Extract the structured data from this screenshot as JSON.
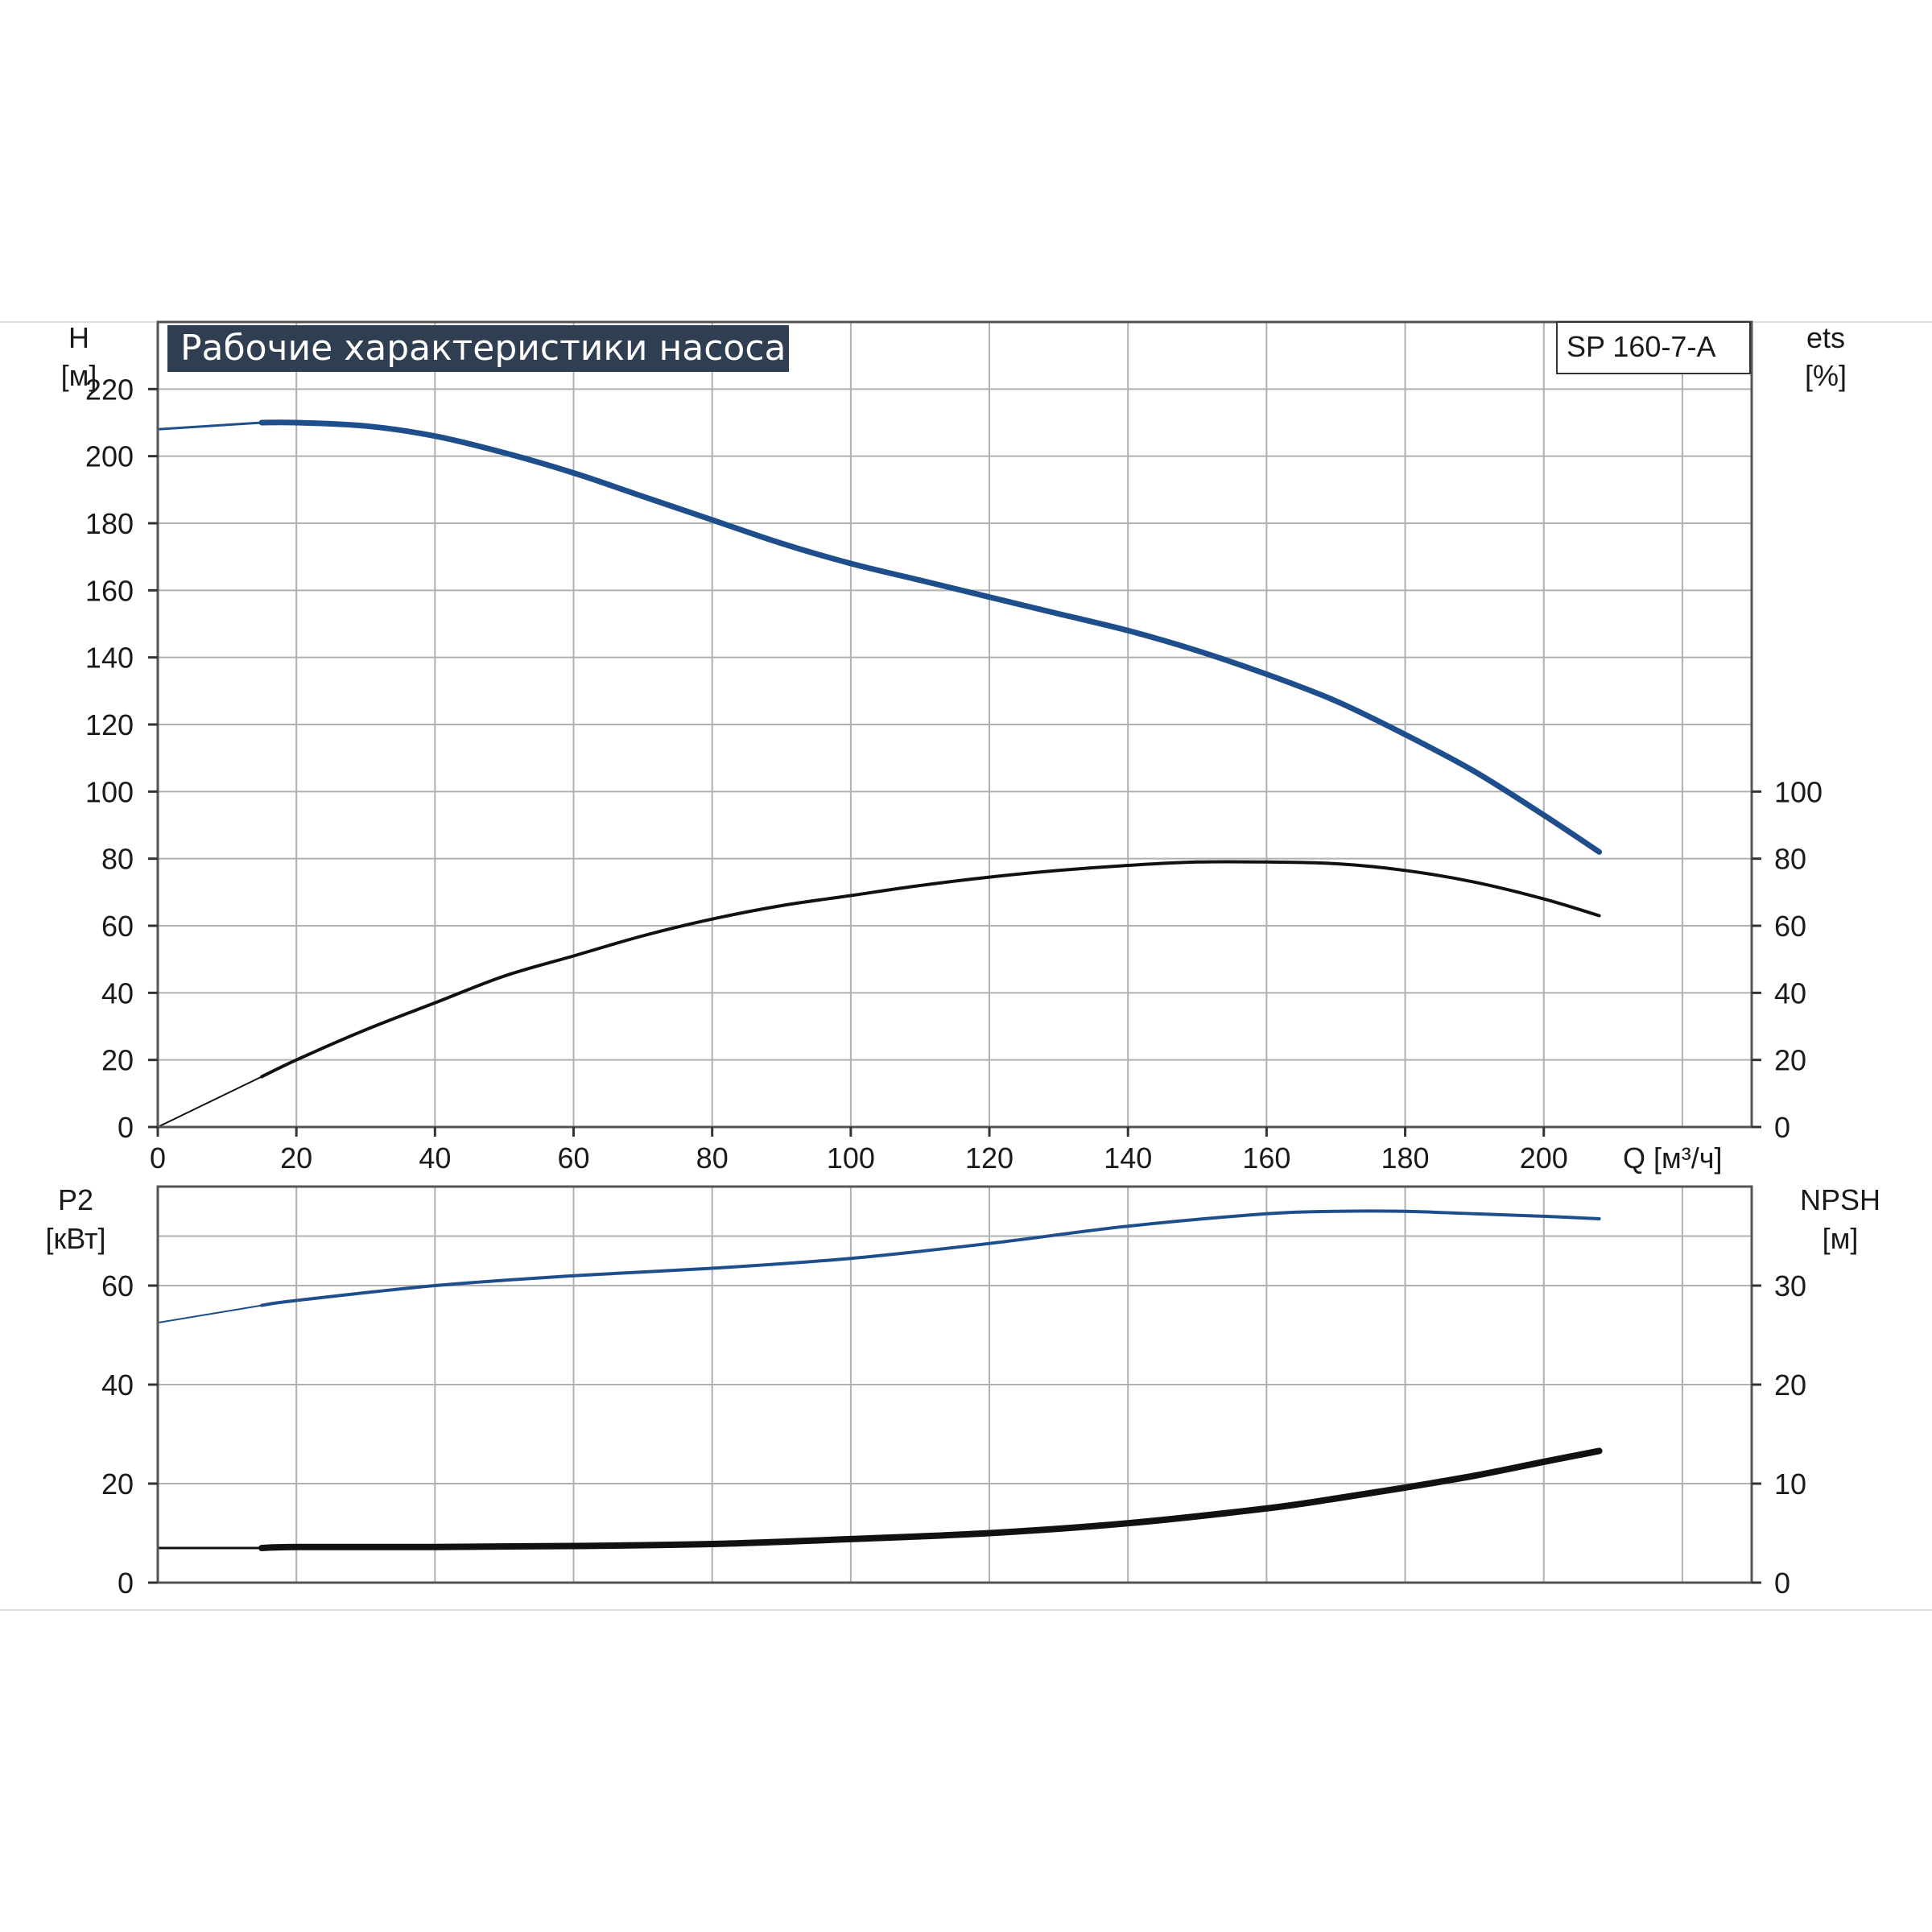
{
  "title": "Рабочие характеристики насоса",
  "model": "SP 160-7-A",
  "colors": {
    "head_curve": "#1f4e8c",
    "power_curve": "#1f4e8c",
    "efficiency_curve": "#111111",
    "npsh_curve": "#111111",
    "grid": "#b0b0b0",
    "title_bg": "#2f3e50"
  },
  "top_chart": {
    "left_axis": {
      "symbol": "H",
      "unit": "[м]"
    },
    "right_axis": {
      "symbol": "ets",
      "unit": "[%]"
    }
  },
  "x_axis": {
    "label": "Q [м³/ч]"
  },
  "bottom_chart": {
    "left_axis": {
      "symbol": "P2",
      "unit": "[кВт]"
    },
    "right_axis": {
      "symbol": "NPSH",
      "unit": "[м]"
    }
  },
  "chart_data": [
    {
      "type": "line",
      "xlabel": "Q [м³/ч]",
      "ylabel": "H [м]",
      "y2label": "ets [%]",
      "xlim": [
        0,
        230
      ],
      "ylim": [
        0,
        240
      ],
      "y2lim": [
        0,
        240
      ],
      "xticks": [
        0,
        20,
        40,
        60,
        80,
        100,
        120,
        140,
        160,
        180,
        200
      ],
      "yticks": [
        0,
        20,
        40,
        60,
        80,
        100,
        120,
        140,
        160,
        180,
        200,
        220
      ],
      "y2ticks": [
        0,
        20,
        40,
        60,
        80,
        100
      ],
      "grid": true,
      "series": [
        {
          "axis": "left",
          "x": [
            0,
            15,
            20,
            30,
            40,
            50,
            60,
            70,
            80,
            90,
            100,
            110,
            120,
            130,
            140,
            150,
            160,
            170,
            180,
            190,
            200,
            208
          ],
          "values": [
            208,
            210,
            210,
            209,
            206,
            201,
            195,
            188,
            181,
            174,
            168,
            163,
            158,
            153,
            148,
            142,
            135,
            127,
            117,
            106,
            93,
            82
          ]
        },
        {
          "axis": "right",
          "x": [
            0,
            15,
            20,
            30,
            40,
            50,
            60,
            70,
            80,
            90,
            100,
            110,
            120,
            130,
            140,
            150,
            160,
            170,
            180,
            190,
            200,
            208
          ],
          "values": [
            0,
            15,
            20,
            29,
            37,
            45,
            51,
            57,
            62,
            66,
            69,
            72,
            74.5,
            76.5,
            78,
            79,
            79,
            78.5,
            76.5,
            73,
            68,
            63
          ]
        }
      ]
    },
    {
      "type": "line",
      "xlabel": "Q [м³/ч]",
      "ylabel": "P2 [кВт]",
      "y2label": "NPSH [м]",
      "xlim": [
        0,
        230
      ],
      "ylim": [
        0,
        80
      ],
      "y2lim": [
        0,
        40
      ],
      "yticks": [
        0,
        20,
        40,
        60
      ],
      "y2ticks": [
        0,
        10,
        20,
        30
      ],
      "grid": true,
      "series": [
        {
          "axis": "left",
          "x": [
            0,
            15,
            20,
            40,
            60,
            80,
            100,
            120,
            140,
            160,
            170,
            180,
            190,
            200,
            208
          ],
          "values": [
            52.5,
            56,
            57,
            60,
            62,
            63.5,
            65.5,
            68.5,
            72,
            74.5,
            75,
            75,
            74.5,
            74,
            73.5
          ]
        },
        {
          "axis": "right",
          "x": [
            0,
            15,
            20,
            40,
            60,
            80,
            100,
            120,
            140,
            160,
            170,
            180,
            190,
            200,
            208
          ],
          "values": [
            3.5,
            3.5,
            3.6,
            3.6,
            3.7,
            3.9,
            4.4,
            5,
            6,
            7.5,
            8.5,
            9.6,
            10.8,
            12.2,
            13.3
          ]
        }
      ]
    }
  ]
}
